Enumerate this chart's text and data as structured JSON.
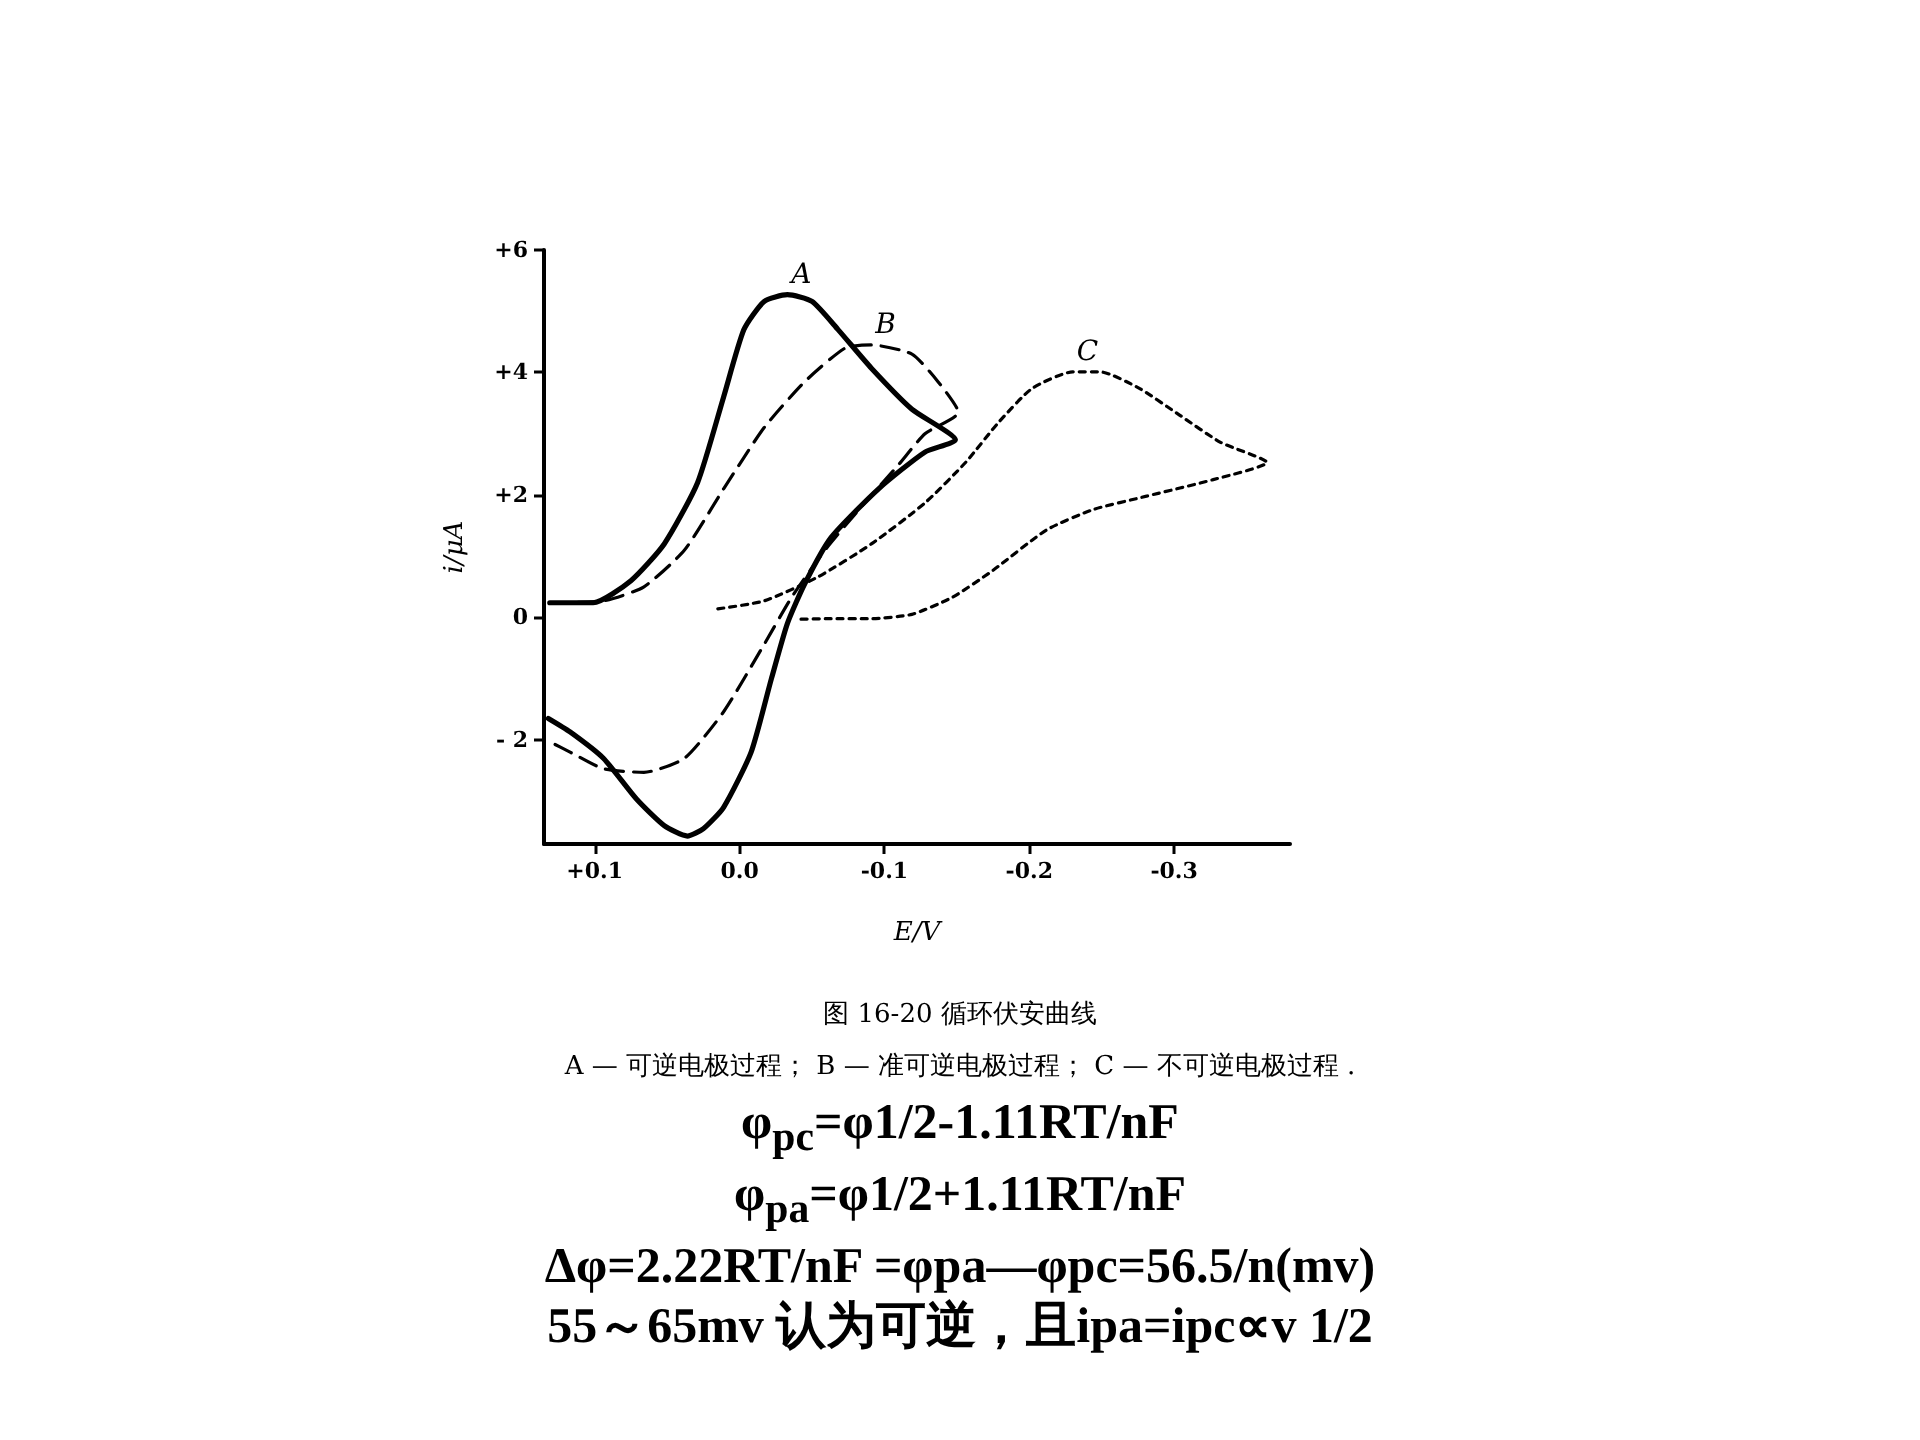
{
  "chart_data": {
    "type": "line",
    "xlabel": "E/V",
    "ylabel": "i/μA",
    "xlim": [
      0.135,
      -0.38
    ],
    "ylim": [
      -3.7,
      6
    ],
    "xticks": [
      {
        "value": 0.1,
        "label": "+0.1"
      },
      {
        "value": 0,
        "label": "0.0"
      },
      -0.1,
      -0.2,
      -0.3
    ],
    "yticks": [
      {
        "value": -2,
        "label": "- 2"
      },
      0,
      {
        "value": 2,
        "label": "+2"
      },
      {
        "value": 4,
        "label": "+4"
      },
      {
        "value": 6,
        "label": "+6"
      }
    ],
    "grid": false,
    "legend": false,
    "marker": "none",
    "series": [
      {
        "name": "A",
        "color": "#000000",
        "line_style": "solid",
        "x": [
          0.131,
          0.101,
          0.075,
          0.052,
          0.029,
          0.011,
          -0.003,
          -0.017,
          -0.033,
          -0.05,
          -0.068,
          -0.091,
          -0.119,
          -0.149,
          -0.128,
          -0.096,
          -0.063,
          -0.045,
          -0.033,
          -0.022,
          -0.008,
          0.011,
          0.025,
          0.036,
          0.052,
          0.071,
          0.094,
          0.117,
          0.132
        ],
        "values": [
          0.24,
          0.24,
          0.6,
          1.2,
          2.2,
          3.6,
          4.7,
          5.16,
          5.27,
          5.16,
          4.7,
          4.07,
          3.4,
          2.9,
          2.7,
          2.1,
          1.3,
          0.55,
          -0.1,
          -1.0,
          -2.2,
          -3.1,
          -3.45,
          -3.57,
          -3.4,
          -2.97,
          -2.3,
          -1.87,
          -1.65
        ]
      },
      {
        "name": "B",
        "color": "#000000",
        "line_style": "dashed",
        "x": [
          0.131,
          0.094,
          0.066,
          0.038,
          0.011,
          -0.017,
          -0.045,
          -0.073,
          -0.091,
          -0.119,
          -0.137,
          -0.151,
          -0.128,
          -0.11,
          -0.082,
          -0.059,
          -0.036,
          -0.017,
          0.011,
          0.038,
          0.066,
          0.094,
          0.117,
          0.131
        ],
        "values": [
          0.24,
          0.27,
          0.5,
          1.1,
          2.1,
          3.1,
          3.85,
          4.4,
          4.45,
          4.3,
          3.85,
          3.35,
          3.0,
          2.5,
          1.75,
          1.1,
          0.33,
          -0.44,
          -1.54,
          -2.3,
          -2.53,
          -2.47,
          -2.2,
          -2.03
        ]
      },
      {
        "name": "C",
        "color": "#000000",
        "line_style": "dotted",
        "x": [
          0.015,
          -0.017,
          -0.054,
          -0.091,
          -0.128,
          -0.156,
          -0.179,
          -0.202,
          -0.23,
          -0.249,
          -0.276,
          -0.304,
          -0.332,
          -0.364,
          -0.327,
          -0.281,
          -0.244,
          -0.212,
          -0.175,
          -0.147,
          -0.119,
          -0.091,
          -0.063,
          -0.04
        ],
        "values": [
          0.14,
          0.27,
          0.66,
          1.2,
          1.87,
          2.53,
          3.19,
          3.74,
          4.01,
          4.01,
          3.74,
          3.3,
          2.86,
          2.53,
          2.25,
          1.98,
          1.76,
          1.43,
          0.77,
          0.33,
          0.05,
          -0.02,
          -0.02,
          -0.03
        ]
      }
    ],
    "annotations": [
      "图 16-20  循环伏安曲线",
      "A — 可逆电极过程；   B — 准可逆电极过程；   C — 不可逆电极过程 .",
      "φ$_{pc}$=φ1/2-1.11RT/nF",
      "φ$_{pa}$=φ1/2+1.11RT/nF",
      "Δφ=2.22RT/nF =φpa—φpc=56.5/n(mv)",
      "55～65mv 认为可逆，且ipa=ipc∝v 1/2"
    ]
  }
}
